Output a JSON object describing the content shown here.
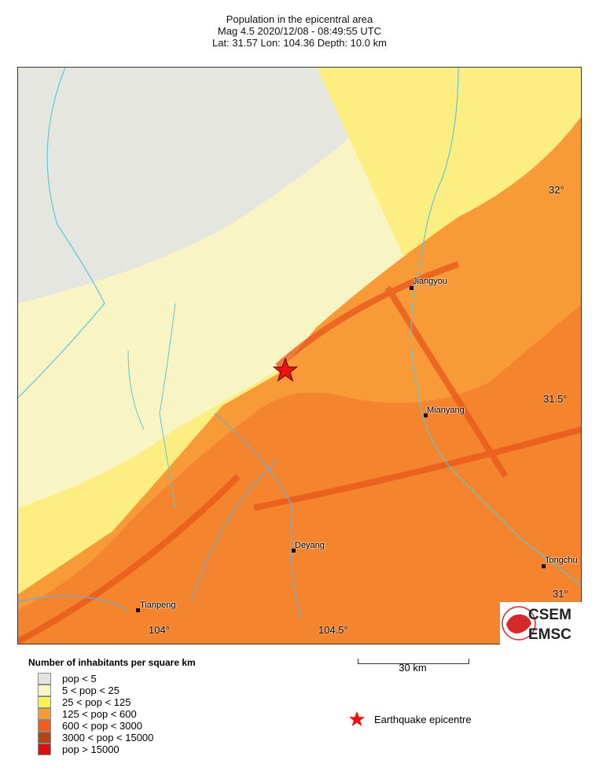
{
  "header": {
    "title": "Population in the epicentral area",
    "line2": "Mag 4.5  2020/12/08 - 08:49:55 UTC",
    "line3": "Lat: 31.57    Lon: 104.36     Depth:  10.0 km"
  },
  "map": {
    "lat_ticks": [
      "32°",
      "31.5°"
    ],
    "partial_lat_label": "31°",
    "lon_ticks": [
      "104°",
      "104.5°"
    ],
    "cities": [
      "Jiangyou",
      "Mianyang",
      "Deyang",
      "Tongchu",
      "Tianpeng"
    ],
    "epicentre_icon": "star-icon",
    "epicentre_color": "#ee1111"
  },
  "scale_bar": {
    "label": "30 km"
  },
  "legend": {
    "title": "Number of inhabitants per square km",
    "items": [
      {
        "label": "pop < 5",
        "color": "#e4e4e0"
      },
      {
        "label": "5 < pop < 25",
        "color": "#f8f6c8"
      },
      {
        "label": "25 < pop < 125",
        "color": "#fcf254"
      },
      {
        "label": "125 < pop < 600",
        "color": "#f89a38"
      },
      {
        "label": "600 < pop < 3000",
        "color": "#f45c1c"
      },
      {
        "label": "3000 < pop < 15000",
        "color": "#b24416"
      },
      {
        "label": "pop > 15000",
        "color": "#d81010"
      }
    ],
    "epicentre_label": "Earthquake epicentre"
  },
  "logo": {
    "top": "CSEM",
    "bottom": "EMSC"
  }
}
